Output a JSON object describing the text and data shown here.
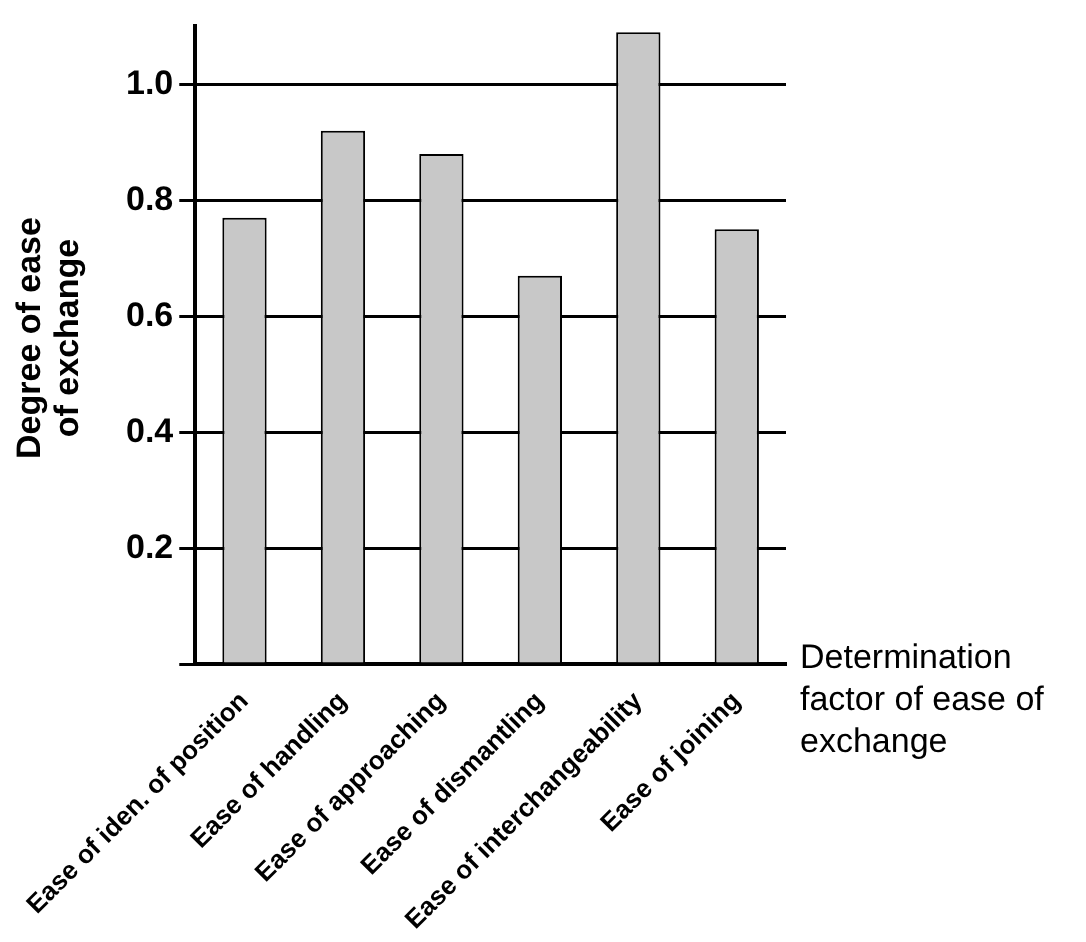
{
  "chart_data": {
    "type": "bar",
    "xlabel": "Determination factor of ease of exchange",
    "ylabel": "Degree of ease of exchange",
    "categories": [
      "Ease of iden. of position",
      "Ease of handling",
      "Ease of approaching",
      "Ease of dismantling",
      "Ease of interchangeability",
      "Ease of joining"
    ],
    "values": [
      0.77,
      0.92,
      0.88,
      0.67,
      1.09,
      0.75
    ],
    "color": "#c8c8c8",
    "ylim": [
      0,
      1.1
    ],
    "yticks": [
      {
        "value": 0,
        "label": null
      },
      {
        "value": 0.2,
        "label": "0.2"
      },
      {
        "value": 0.4,
        "label": "0.4"
      },
      {
        "value": 0.6,
        "label": "0.6"
      },
      {
        "value": 0.8,
        "label": "0.8"
      },
      {
        "value": 1,
        "label": "1.0"
      }
    ],
    "grid": "y",
    "legend": false
  }
}
